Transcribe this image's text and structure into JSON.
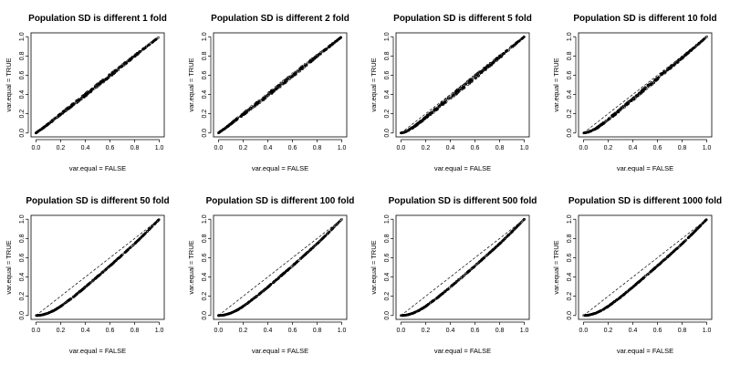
{
  "figure": {
    "layout": {
      "rows": 2,
      "cols": 4
    }
  },
  "chart_data": [
    {
      "type": "scatter",
      "title": "Population SD is different 1 fold",
      "xlabel": "var.equal = FALSE",
      "ylabel": "var.equal = TRUE",
      "xlim": [
        0,
        1
      ],
      "ylim": [
        0,
        1
      ],
      "xticks": [
        "0.0",
        "0.2",
        "0.4",
        "0.6",
        "0.8",
        "1.0"
      ],
      "yticks": [
        "0.0",
        "0.2",
        "0.4",
        "0.6",
        "0.8",
        "1.0"
      ],
      "reference_line": "y = x (dashed)",
      "series": [
        {
          "values": [
            [
              0,
              0
            ],
            [
              0.02,
              0.02
            ],
            [
              0.05,
              0.045
            ],
            [
              0.1,
              0.095
            ],
            [
              0.15,
              0.145
            ],
            [
              0.2,
              0.195
            ],
            [
              0.3,
              0.295
            ],
            [
              0.4,
              0.395
            ],
            [
              0.5,
              0.497
            ],
            [
              0.6,
              0.598
            ],
            [
              0.7,
              0.699
            ],
            [
              0.8,
              0.8
            ],
            [
              0.9,
              0.9
            ],
            [
              1,
              1
            ]
          ],
          "spread": 0.015
        }
      ]
    },
    {
      "type": "scatter",
      "title": "Population SD is different 2 fold",
      "xlabel": "var.equal = FALSE",
      "ylabel": "var.equal = TRUE",
      "xlim": [
        0,
        1
      ],
      "ylim": [
        0,
        1
      ],
      "xticks": [
        "0.0",
        "0.2",
        "0.4",
        "0.6",
        "0.8",
        "1.0"
      ],
      "yticks": [
        "0.0",
        "0.2",
        "0.4",
        "0.6",
        "0.8",
        "1.0"
      ],
      "reference_line": "y = x (dashed)",
      "series": [
        {
          "values": [
            [
              0,
              0
            ],
            [
              0.02,
              0.02
            ],
            [
              0.05,
              0.045
            ],
            [
              0.1,
              0.095
            ],
            [
              0.15,
              0.145
            ],
            [
              0.2,
              0.195
            ],
            [
              0.3,
              0.295
            ],
            [
              0.4,
              0.395
            ],
            [
              0.5,
              0.497
            ],
            [
              0.6,
              0.598
            ],
            [
              0.7,
              0.699
            ],
            [
              0.8,
              0.8
            ],
            [
              0.9,
              0.9
            ],
            [
              1,
              1
            ]
          ],
          "spread": 0.018
        }
      ]
    },
    {
      "type": "scatter",
      "title": "Population SD is different 5 fold",
      "xlabel": "var.equal = FALSE",
      "ylabel": "var.equal = TRUE",
      "xlim": [
        0,
        1
      ],
      "ylim": [
        0,
        1
      ],
      "xticks": [
        "0.0",
        "0.2",
        "0.4",
        "0.6",
        "0.8",
        "1.0"
      ],
      "yticks": [
        "0.0",
        "0.2",
        "0.4",
        "0.6",
        "0.8",
        "1.0"
      ],
      "reference_line": "y = x (dashed)",
      "series": [
        {
          "values": [
            [
              0,
              0
            ],
            [
              0.02,
              0.005
            ],
            [
              0.05,
              0.02
            ],
            [
              0.1,
              0.06
            ],
            [
              0.15,
              0.11
            ],
            [
              0.2,
              0.16
            ],
            [
              0.3,
              0.265
            ],
            [
              0.4,
              0.37
            ],
            [
              0.5,
              0.475
            ],
            [
              0.6,
              0.58
            ],
            [
              0.7,
              0.685
            ],
            [
              0.8,
              0.79
            ],
            [
              0.9,
              0.895
            ],
            [
              1,
              1
            ]
          ],
          "spread": 0.02
        }
      ]
    },
    {
      "type": "scatter",
      "title": "Population SD is different 10 fold",
      "xlabel": "var.equal = FALSE",
      "ylabel": "var.equal = TRUE",
      "xlim": [
        0,
        1
      ],
      "ylim": [
        0,
        1
      ],
      "xticks": [
        "0.0",
        "0.2",
        "0.4",
        "0.6",
        "0.8",
        "1.0"
      ],
      "yticks": [
        "0.0",
        "0.2",
        "0.4",
        "0.6",
        "0.8",
        "1.0"
      ],
      "reference_line": "y = x (dashed)",
      "series": [
        {
          "values": [
            [
              0,
              0
            ],
            [
              0.02,
              0.004
            ],
            [
              0.05,
              0.015
            ],
            [
              0.1,
              0.045
            ],
            [
              0.15,
              0.09
            ],
            [
              0.2,
              0.14
            ],
            [
              0.3,
              0.245
            ],
            [
              0.4,
              0.35
            ],
            [
              0.5,
              0.46
            ],
            [
              0.6,
              0.565
            ],
            [
              0.7,
              0.675
            ],
            [
              0.8,
              0.78
            ],
            [
              0.9,
              0.89
            ],
            [
              1,
              1
            ]
          ],
          "spread": 0.015
        }
      ]
    },
    {
      "type": "scatter",
      "title": "Population SD is different 50 fold",
      "xlabel": "var.equal = FALSE",
      "ylabel": "var.equal = TRUE",
      "xlim": [
        0,
        1
      ],
      "ylim": [
        0,
        1
      ],
      "xticks": [
        "0.0",
        "0.2",
        "0.4",
        "0.6",
        "0.8",
        "1.0"
      ],
      "yticks": [
        "0.0",
        "0.2",
        "0.4",
        "0.6",
        "0.8",
        "1.0"
      ],
      "reference_line": "y = x (dashed)",
      "series": [
        {
          "values": [
            [
              0,
              0
            ],
            [
              0.02,
              0.001
            ],
            [
              0.05,
              0.006
            ],
            [
              0.1,
              0.025
            ],
            [
              0.15,
              0.055
            ],
            [
              0.2,
              0.095
            ],
            [
              0.3,
              0.19
            ],
            [
              0.4,
              0.295
            ],
            [
              0.5,
              0.405
            ],
            [
              0.6,
              0.515
            ],
            [
              0.7,
              0.63
            ],
            [
              0.8,
              0.745
            ],
            [
              0.9,
              0.87
            ],
            [
              1,
              1
            ]
          ],
          "spread": 0.004
        }
      ]
    },
    {
      "type": "scatter",
      "title": "Population SD is different 100 fold",
      "xlabel": "var.equal = FALSE",
      "ylabel": "var.equal = TRUE",
      "xlim": [
        0,
        1
      ],
      "ylim": [
        0,
        1
      ],
      "xticks": [
        "0.0",
        "0.2",
        "0.4",
        "0.6",
        "0.8",
        "1.0"
      ],
      "yticks": [
        "0.0",
        "0.2",
        "0.4",
        "0.6",
        "0.8",
        "1.0"
      ],
      "reference_line": "y = x (dashed)",
      "series": [
        {
          "values": [
            [
              0,
              0
            ],
            [
              0.02,
              0.001
            ],
            [
              0.05,
              0.006
            ],
            [
              0.1,
              0.025
            ],
            [
              0.15,
              0.055
            ],
            [
              0.2,
              0.095
            ],
            [
              0.3,
              0.19
            ],
            [
              0.4,
              0.295
            ],
            [
              0.5,
              0.405
            ],
            [
              0.6,
              0.515
            ],
            [
              0.7,
              0.63
            ],
            [
              0.8,
              0.745
            ],
            [
              0.9,
              0.87
            ],
            [
              1,
              1
            ]
          ],
          "spread": 0.004
        }
      ]
    },
    {
      "type": "scatter",
      "title": "Population SD is different 500 fold",
      "xlabel": "var.equal = FALSE",
      "ylabel": "var.equal = TRUE",
      "xlim": [
        0,
        1
      ],
      "ylim": [
        0,
        1
      ],
      "xticks": [
        "0.0",
        "0.2",
        "0.4",
        "0.6",
        "0.8",
        "1.0"
      ],
      "yticks": [
        "0.0",
        "0.2",
        "0.4",
        "0.6",
        "0.8",
        "1.0"
      ],
      "reference_line": "y = x (dashed)",
      "series": [
        {
          "values": [
            [
              0,
              0
            ],
            [
              0.02,
              0.001
            ],
            [
              0.05,
              0.006
            ],
            [
              0.1,
              0.025
            ],
            [
              0.15,
              0.055
            ],
            [
              0.2,
              0.095
            ],
            [
              0.3,
              0.19
            ],
            [
              0.4,
              0.295
            ],
            [
              0.5,
              0.405
            ],
            [
              0.6,
              0.515
            ],
            [
              0.7,
              0.63
            ],
            [
              0.8,
              0.745
            ],
            [
              0.9,
              0.87
            ],
            [
              1,
              1
            ]
          ],
          "spread": 0.004
        }
      ]
    },
    {
      "type": "scatter",
      "title": "Population SD is different 1000 fold",
      "xlabel": "var.equal = FALSE",
      "ylabel": "var.equal = TRUE",
      "xlim": [
        0,
        1
      ],
      "ylim": [
        0,
        1
      ],
      "xticks": [
        "0.0",
        "0.2",
        "0.4",
        "0.6",
        "0.8",
        "1.0"
      ],
      "yticks": [
        "0.0",
        "0.2",
        "0.4",
        "0.6",
        "0.8",
        "1.0"
      ],
      "reference_line": "y = x (dashed)",
      "series": [
        {
          "values": [
            [
              0,
              0
            ],
            [
              0.02,
              0.001
            ],
            [
              0.05,
              0.006
            ],
            [
              0.1,
              0.025
            ],
            [
              0.15,
              0.055
            ],
            [
              0.2,
              0.095
            ],
            [
              0.3,
              0.19
            ],
            [
              0.4,
              0.295
            ],
            [
              0.5,
              0.405
            ],
            [
              0.6,
              0.515
            ],
            [
              0.7,
              0.63
            ],
            [
              0.8,
              0.745
            ],
            [
              0.9,
              0.87
            ],
            [
              1,
              1
            ]
          ],
          "spread": 0.004
        }
      ]
    }
  ]
}
